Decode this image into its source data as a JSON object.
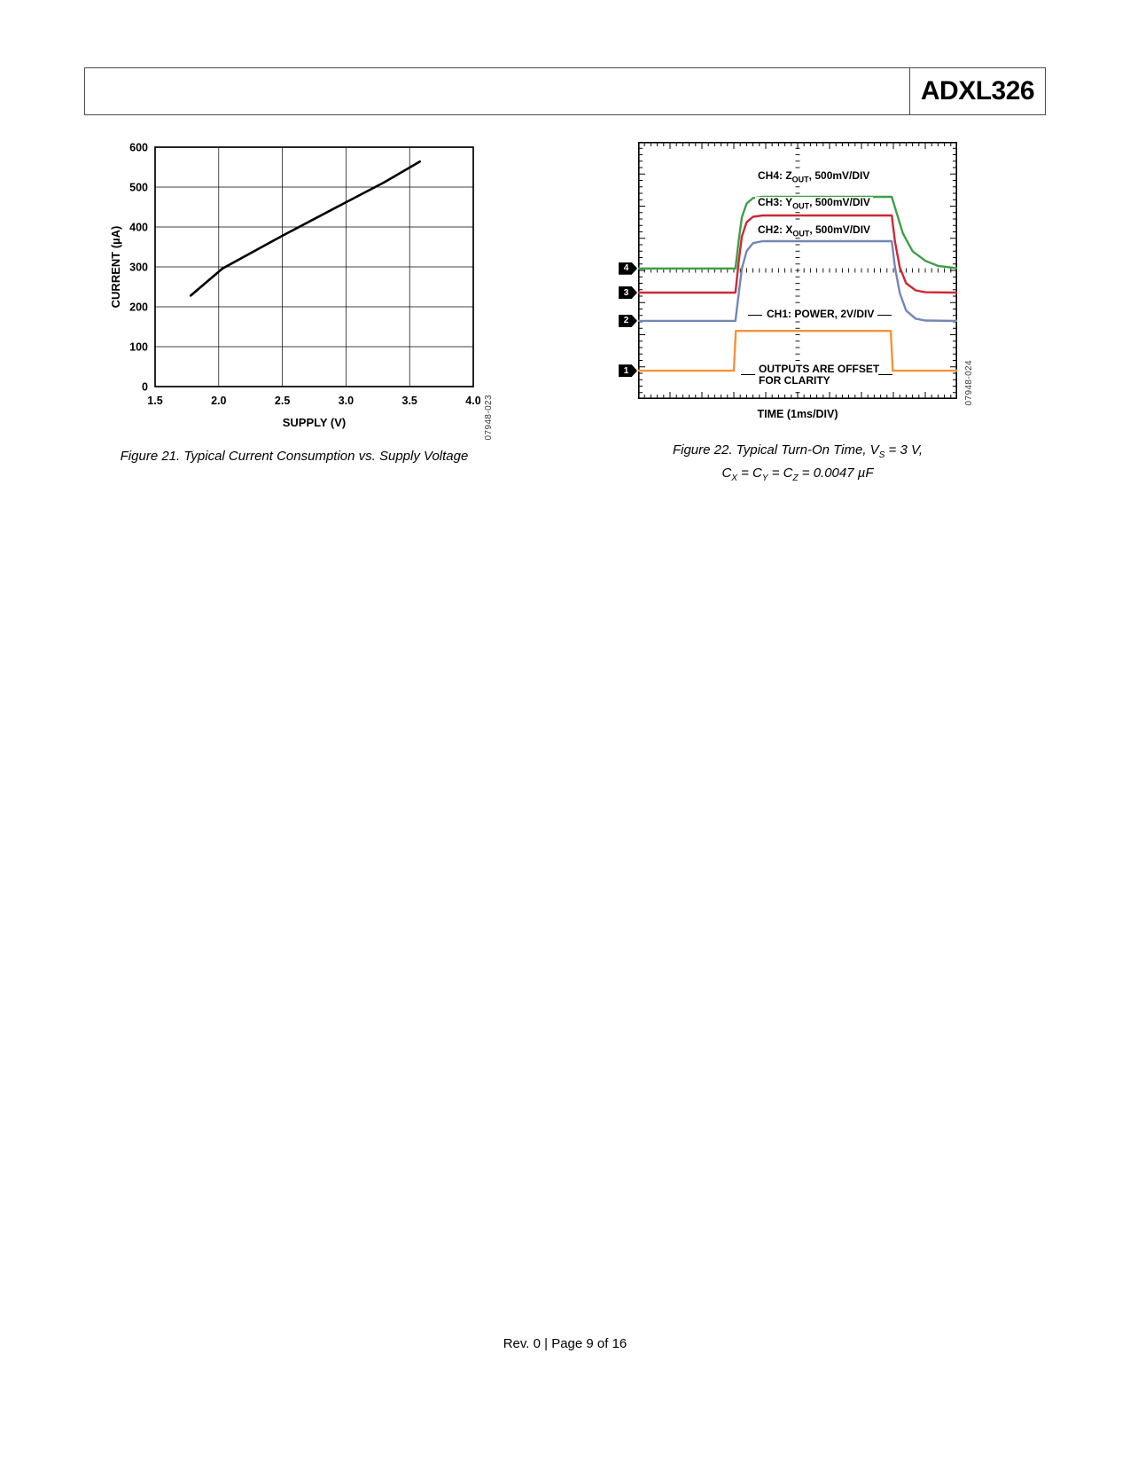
{
  "header": {
    "part_number": "ADXL326"
  },
  "figure21": {
    "caption": "Figure 21. Typical Current Consumption vs. Supply Voltage",
    "code": "07948-023"
  },
  "figure22": {
    "caption_line1": [
      {
        "t": "Figure 22. Typical Turn-On Time, V"
      },
      {
        "t": "S",
        "sub": true
      },
      {
        "t": " = 3 V,"
      }
    ],
    "caption_line2": [
      {
        "t": "C"
      },
      {
        "t": "X",
        "sub": true
      },
      {
        "t": " = C"
      },
      {
        "t": "Y",
        "sub": true
      },
      {
        "t": " = C"
      },
      {
        "t": "Z",
        "sub": true
      },
      {
        "t": " = 0.0047 µF"
      }
    ],
    "code": "07948-024",
    "time_label": "TIME (1ms/DIV)",
    "ch4_label": [
      {
        "t": "CH4: Z"
      },
      {
        "t": "OUT",
        "sub": true
      },
      {
        "t": ", 500mV/DIV"
      }
    ],
    "ch3_label": [
      {
        "t": "CH3: Y"
      },
      {
        "t": "OUT",
        "sub": true
      },
      {
        "t": ", 500mV/DIV"
      }
    ],
    "ch2_label": [
      {
        "t": "CH2: X"
      },
      {
        "t": "OUT",
        "sub": true
      },
      {
        "t": ", 500mV/DIV"
      }
    ],
    "ch1_label": [
      {
        "t": "CH1: POWER, 2V/DIV"
      }
    ],
    "offset_note_line1": "OUTPUTS ARE OFFSET",
    "offset_note_line2": "FOR CLARITY"
  },
  "footer": {
    "text": "Rev. 0 | Page 9 of 16"
  },
  "chart_data": [
    {
      "type": "line",
      "title": "Typical Current Consumption vs. Supply Voltage",
      "xlabel": "SUPPLY (V)",
      "ylabel": "CURRENT (µA)",
      "xlim": [
        1.5,
        4.0
      ],
      "ylim": [
        0,
        600
      ],
      "xtick_labels": [
        "1.5",
        "2.0",
        "2.5",
        "3.0",
        "3.5",
        "4.0"
      ],
      "yticks": [
        0,
        100,
        200,
        300,
        400,
        500,
        600
      ],
      "grid": true,
      "legend": false,
      "series": [
        {
          "name": "supply current",
          "color": "#000000",
          "points": [
            [
              1.78,
              228
            ],
            [
              2.03,
              296
            ],
            [
              2.5,
              378
            ],
            [
              3.0,
              462
            ],
            [
              3.3,
              512
            ],
            [
              3.58,
              564
            ]
          ]
        }
      ]
    },
    {
      "type": "line",
      "subtype": "oscilloscope",
      "title": "Typical Turn-On Time",
      "xlabel": "TIME (1ms/DIV)",
      "x_divisions": 10,
      "y_divisions": 8,
      "series": [
        {
          "name": "CH4: ZOUT, 500mV/DIV",
          "color": "#3f9f48",
          "points": [
            [
              0,
              3.94
            ],
            [
              3.05,
              3.94
            ],
            [
              3.15,
              3.1
            ],
            [
              3.25,
              2.35
            ],
            [
              3.4,
              1.92
            ],
            [
              3.6,
              1.75
            ],
            [
              3.9,
              1.71
            ],
            [
              7.95,
              1.71
            ],
            [
              8.1,
              2.2
            ],
            [
              8.3,
              2.85
            ],
            [
              8.6,
              3.4
            ],
            [
              9.0,
              3.7
            ],
            [
              9.4,
              3.86
            ],
            [
              10,
              3.93
            ]
          ]
        },
        {
          "name": "CH3: YOUT, 500mV/DIV",
          "color": "#cc2936",
          "points": [
            [
              0,
              4.69
            ],
            [
              3.05,
              4.69
            ],
            [
              3.15,
              3.75
            ],
            [
              3.25,
              2.95
            ],
            [
              3.4,
              2.5
            ],
            [
              3.6,
              2.33
            ],
            [
              3.9,
              2.29
            ],
            [
              7.95,
              2.29
            ],
            [
              8.05,
              3.1
            ],
            [
              8.2,
              3.9
            ],
            [
              8.4,
              4.4
            ],
            [
              8.7,
              4.62
            ],
            [
              9.0,
              4.68
            ],
            [
              10,
              4.69
            ]
          ]
        },
        {
          "name": "CH2: XOUT, 500mV/DIV",
          "color": "#7287b7",
          "points": [
            [
              0,
              5.57
            ],
            [
              3.05,
              5.57
            ],
            [
              3.15,
              4.75
            ],
            [
              3.25,
              3.95
            ],
            [
              3.4,
              3.4
            ],
            [
              3.6,
              3.15
            ],
            [
              3.9,
              3.09
            ],
            [
              7.95,
              3.09
            ],
            [
              8.05,
              3.9
            ],
            [
              8.2,
              4.7
            ],
            [
              8.4,
              5.25
            ],
            [
              8.7,
              5.5
            ],
            [
              9.0,
              5.56
            ],
            [
              10,
              5.57
            ]
          ]
        },
        {
          "name": "CH1: POWER, 2V/DIV",
          "color": "#f79239",
          "points": [
            [
              0,
              7.12
            ],
            [
              3.0,
              7.12
            ],
            [
              3.06,
              5.88
            ],
            [
              7.92,
              5.88
            ],
            [
              7.98,
              7.12
            ],
            [
              10,
              7.12
            ]
          ]
        }
      ],
      "markers": [
        {
          "label": "4",
          "y": 3.94
        },
        {
          "label": "3",
          "y": 4.69
        },
        {
          "label": "2",
          "y": 5.57
        },
        {
          "label": "1",
          "y": 7.12
        }
      ],
      "annotations": [
        "OUTPUTS ARE OFFSET FOR CLARITY"
      ]
    }
  ]
}
